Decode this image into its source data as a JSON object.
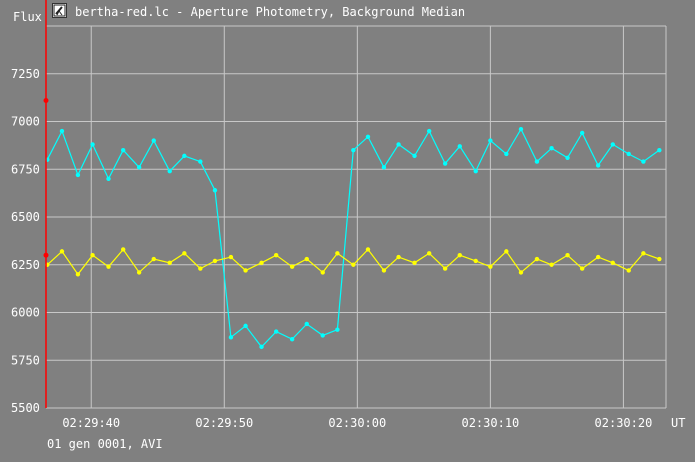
{
  "window": {
    "title": "bertha-red.lc - Aperture Photometry, Background Median",
    "icon": "telescope-app-icon"
  },
  "status_line": "01 gen 0001, AVI",
  "colors": {
    "background": "#808080",
    "grid": "#c8c8c8",
    "series_cyan": "#00ffff",
    "series_yellow": "#ffff00",
    "marker_red": "#ff0000"
  },
  "chart_data": {
    "type": "line",
    "ylabel": "Flux",
    "xlabel": "UT",
    "ylim": [
      5500,
      7500
    ],
    "xlim": [
      "02:29:36.6",
      "02:30:23.2"
    ],
    "y_ticks": [
      5500,
      5750,
      6000,
      6250,
      6500,
      6750,
      7000,
      7250
    ],
    "x_ticks": [
      "02:29:40",
      "02:29:50",
      "02:30:00",
      "02:30:10",
      "02:30:20"
    ],
    "grid": true,
    "legend": "none",
    "series": [
      {
        "color": "#00ffff",
        "x": [
          "02:29:36.7",
          "02:29:37.8",
          "02:29:39.0",
          "02:29:40.1",
          "02:29:41.3",
          "02:29:42.4",
          "02:29:43.6",
          "02:29:44.7",
          "02:29:45.9",
          "02:29:47.0",
          "02:29:48.2",
          "02:29:49.3",
          "02:29:50.5",
          "02:29:51.6",
          "02:29:52.8",
          "02:29:53.9",
          "02:29:55.1",
          "02:29:56.2",
          "02:29:57.4",
          "02:29:58.5",
          "02:29:59.7",
          "02:30:00.8",
          "02:30:02.0",
          "02:30:03.1",
          "02:30:04.3",
          "02:30:05.4",
          "02:30:06.6",
          "02:30:07.7",
          "02:30:08.9",
          "02:30:10.0",
          "02:30:11.2",
          "02:30:12.3",
          "02:30:13.5",
          "02:30:14.6",
          "02:30:15.8",
          "02:30:16.9",
          "02:30:18.1",
          "02:30:19.2",
          "02:30:20.4",
          "02:30:21.5",
          "02:30:22.7"
        ],
        "values": [
          6800,
          6950,
          6720,
          6880,
          6700,
          6850,
          6760,
          6900,
          6740,
          6820,
          6790,
          6640,
          5870,
          5930,
          5820,
          5900,
          5860,
          5940,
          5880,
          5910,
          6850,
          6920,
          6760,
          6880,
          6820,
          6950,
          6780,
          6870,
          6740,
          6900,
          6830,
          6960,
          6790,
          6860,
          6810,
          6940,
          6770,
          6880,
          6830,
          6790,
          6850
        ]
      },
      {
        "color": "#ffff00",
        "x": [
          "02:29:36.7",
          "02:29:37.8",
          "02:29:39.0",
          "02:29:40.1",
          "02:29:41.3",
          "02:29:42.4",
          "02:29:43.6",
          "02:29:44.7",
          "02:29:45.9",
          "02:29:47.0",
          "02:29:48.2",
          "02:29:49.3",
          "02:29:50.5",
          "02:29:51.6",
          "02:29:52.8",
          "02:29:53.9",
          "02:29:55.1",
          "02:29:56.2",
          "02:29:57.4",
          "02:29:58.5",
          "02:29:59.7",
          "02:30:00.8",
          "02:30:02.0",
          "02:30:03.1",
          "02:30:04.3",
          "02:30:05.4",
          "02:30:06.6",
          "02:30:07.7",
          "02:30:08.9",
          "02:30:10.0",
          "02:30:11.2",
          "02:30:12.3",
          "02:30:13.5",
          "02:30:14.6",
          "02:30:15.8",
          "02:30:16.9",
          "02:30:18.1",
          "02:30:19.2",
          "02:30:20.4",
          "02:30:21.5",
          "02:30:22.7"
        ],
        "values": [
          6250,
          6320,
          6200,
          6300,
          6240,
          6330,
          6210,
          6280,
          6260,
          6310,
          6230,
          6270,
          6290,
          6220,
          6260,
          6300,
          6240,
          6280,
          6210,
          6310,
          6250,
          6330,
          6220,
          6290,
          6260,
          6310,
          6230,
          6300,
          6270,
          6240,
          6320,
          6210,
          6280,
          6250,
          6300,
          6230,
          6290,
          6260,
          6220,
          6310,
          6280
        ]
      }
    ]
  }
}
